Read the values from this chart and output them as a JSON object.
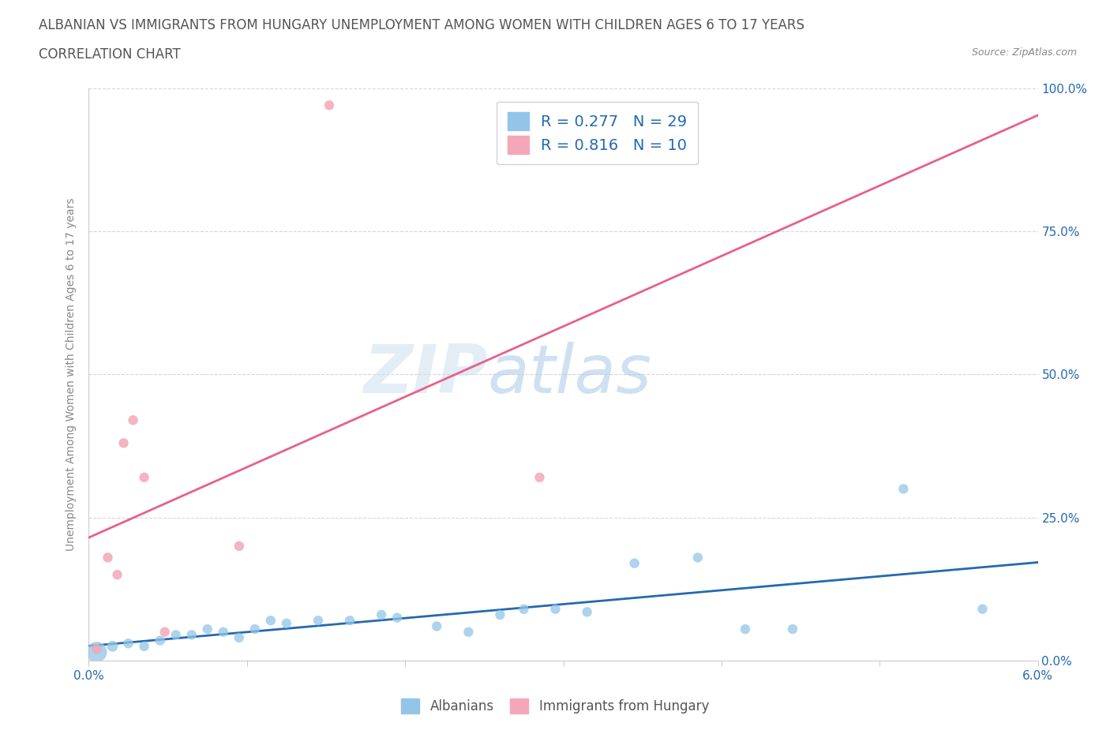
{
  "title_line1": "ALBANIAN VS IMMIGRANTS FROM HUNGARY UNEMPLOYMENT AMONG WOMEN WITH CHILDREN AGES 6 TO 17 YEARS",
  "title_line2": "CORRELATION CHART",
  "source_text": "Source: ZipAtlas.com",
  "ylabel": "Unemployment Among Women with Children Ages 6 to 17 years",
  "ytick_labels": [
    "0.0%",
    "25.0%",
    "50.0%",
    "75.0%",
    "100.0%"
  ],
  "ytick_values": [
    0,
    25,
    50,
    75,
    100
  ],
  "xmin": 0.0,
  "xmax": 6.0,
  "ymin": 0.0,
  "ymax": 100.0,
  "watermark_zip": "ZIP",
  "watermark_atlas": "atlas",
  "albanians_color": "#92C5E8",
  "hungary_color": "#F4A7B9",
  "regression_blue": "#2469B0",
  "regression_pink": "#E8608A",
  "albanians_x": [
    0.05,
    0.15,
    0.25,
    0.35,
    0.45,
    0.55,
    0.65,
    0.75,
    0.85,
    0.95,
    1.05,
    1.15,
    1.25,
    1.45,
    1.65,
    1.85,
    1.95,
    2.2,
    2.4,
    2.6,
    2.75,
    2.95,
    3.15,
    3.45,
    3.85,
    4.15,
    4.45,
    5.15,
    5.65
  ],
  "albanians_y": [
    1.5,
    2.5,
    3.0,
    2.5,
    3.5,
    4.5,
    4.5,
    5.5,
    5.0,
    4.0,
    5.5,
    7.0,
    6.5,
    7.0,
    7.0,
    8.0,
    7.5,
    6.0,
    5.0,
    8.0,
    9.0,
    9.0,
    8.5,
    17.0,
    18.0,
    5.5,
    5.5,
    30.0,
    9.0
  ],
  "albanians_size": [
    350,
    100,
    80,
    80,
    80,
    80,
    80,
    80,
    80,
    80,
    80,
    80,
    80,
    80,
    80,
    80,
    80,
    80,
    80,
    80,
    80,
    80,
    80,
    80,
    80,
    80,
    80,
    80,
    80
  ],
  "hungary_x": [
    0.05,
    0.12,
    0.18,
    0.22,
    0.28,
    0.35,
    0.48,
    0.95,
    1.52,
    2.85
  ],
  "hungary_y": [
    2.0,
    18.0,
    15.0,
    38.0,
    42.0,
    32.0,
    5.0,
    20.0,
    97.0,
    32.0
  ],
  "hungary_size": [
    80,
    80,
    80,
    80,
    80,
    80,
    80,
    80,
    80,
    80
  ],
  "background_color": "#FFFFFF",
  "grid_color": "#CCCCCC",
  "title_fontsize": 12,
  "subtitle_fontsize": 12,
  "axis_label_fontsize": 10,
  "tick_fontsize": 11,
  "legend_fontsize": 14
}
